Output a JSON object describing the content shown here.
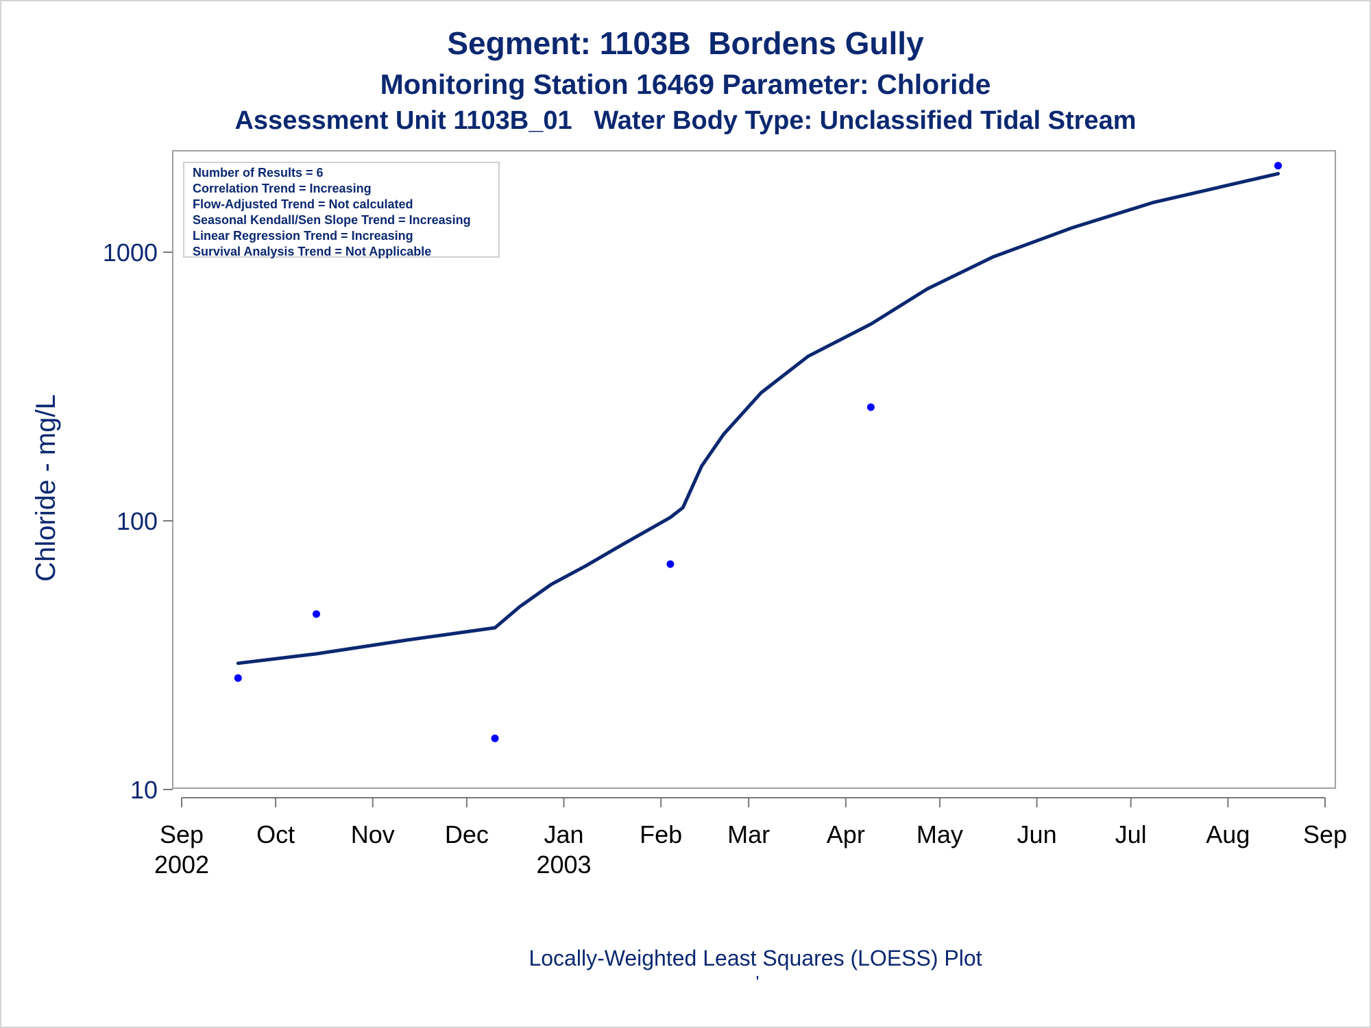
{
  "titles": {
    "line1": "Segment: 1103B  Bordens Gully",
    "line2": "Monitoring Station 16469 Parameter: Chloride",
    "line3": "Assessment Unit 1103B_01   Water Body Type: Unclassified Tidal Stream"
  },
  "footer": {
    "caption": "Locally-Weighted Least Squares (LOESS) Plot",
    "mark": "'"
  },
  "legend": [
    "Number of Results = 6",
    "Correlation Trend = Increasing",
    "Flow-Adjusted Trend = Not calculated",
    "Seasonal Kendall/Sen Slope Trend = Increasing",
    "Linear Regression Trend = Increasing",
    "Survival Analysis Trend = Not Applicable"
  ],
  "colors": {
    "text": "#0b2870",
    "line": "#0b2870",
    "points": "#0000ff",
    "axis": "#777777"
  },
  "chart_data": {
    "type": "scatter",
    "ylabel": "Chloride - mg/L",
    "xlabel": "",
    "yscale": "log",
    "ylim": [
      10,
      2100
    ],
    "xlim": [
      "2002-09-01",
      "2003-09-01"
    ],
    "yticks": [
      {
        "value": 10,
        "label": "10"
      },
      {
        "value": 100,
        "label": "100"
      },
      {
        "value": 1000,
        "label": "1000"
      }
    ],
    "xticks": [
      {
        "date": "2002-09-01",
        "label": "Sep",
        "sub": "2002"
      },
      {
        "date": "2002-10-01",
        "label": "Oct",
        "sub": ""
      },
      {
        "date": "2002-11-01",
        "label": "Nov",
        "sub": ""
      },
      {
        "date": "2002-12-01",
        "label": "Dec",
        "sub": ""
      },
      {
        "date": "2003-01-01",
        "label": "Jan",
        "sub": "2003"
      },
      {
        "date": "2003-02-01",
        "label": "Feb",
        "sub": ""
      },
      {
        "date": "2003-03-01",
        "label": "Mar",
        "sub": ""
      },
      {
        "date": "2003-04-01",
        "label": "Apr",
        "sub": ""
      },
      {
        "date": "2003-05-01",
        "label": "May",
        "sub": ""
      },
      {
        "date": "2003-06-01",
        "label": "Jun",
        "sub": ""
      },
      {
        "date": "2003-07-01",
        "label": "Jul",
        "sub": ""
      },
      {
        "date": "2003-08-01",
        "label": "Aug",
        "sub": ""
      },
      {
        "date": "2003-09-01",
        "label": "Sep",
        "sub": ""
      }
    ],
    "points": [
      {
        "date": "2002-09-19",
        "value": 26
      },
      {
        "date": "2002-10-14",
        "value": 45
      },
      {
        "date": "2002-12-10",
        "value": 15.5
      },
      {
        "date": "2003-02-04",
        "value": 69
      },
      {
        "date": "2003-04-09",
        "value": 265
      },
      {
        "date": "2003-08-17",
        "value": 2100
      }
    ],
    "loess": [
      {
        "date": "2002-09-19",
        "value": 29.5
      },
      {
        "date": "2002-10-14",
        "value": 32
      },
      {
        "date": "2002-11-12",
        "value": 36
      },
      {
        "date": "2002-12-10",
        "value": 40
      },
      {
        "date": "2002-12-18",
        "value": 48
      },
      {
        "date": "2002-12-28",
        "value": 58
      },
      {
        "date": "2003-01-08",
        "value": 68
      },
      {
        "date": "2003-01-20",
        "value": 82
      },
      {
        "date": "2003-02-04",
        "value": 103
      },
      {
        "date": "2003-02-08",
        "value": 112
      },
      {
        "date": "2003-02-14",
        "value": 160
      },
      {
        "date": "2003-02-21",
        "value": 210
      },
      {
        "date": "2003-03-05",
        "value": 300
      },
      {
        "date": "2003-03-20",
        "value": 410
      },
      {
        "date": "2003-04-09",
        "value": 540
      },
      {
        "date": "2003-04-27",
        "value": 730
      },
      {
        "date": "2003-05-18",
        "value": 960
      },
      {
        "date": "2003-06-12",
        "value": 1230
      },
      {
        "date": "2003-07-08",
        "value": 1530
      },
      {
        "date": "2003-08-17",
        "value": 1960
      }
    ]
  }
}
